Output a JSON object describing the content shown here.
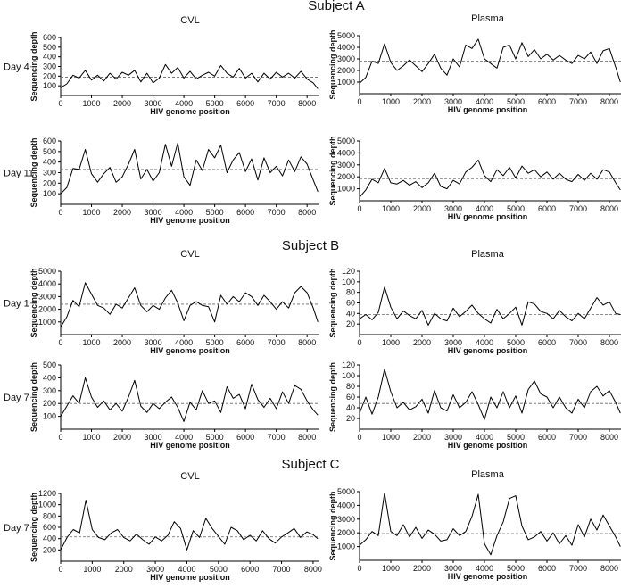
{
  "figure": {
    "subjects": [
      {
        "title": "Subject A",
        "col_titles": [
          "CVL",
          "Plasma"
        ],
        "days": [
          "Day 4",
          "Day 11"
        ]
      },
      {
        "title": "Subject B",
        "col_titles": [
          "CVL",
          "Plasma"
        ],
        "days": [
          "Day 1",
          "Day 7"
        ]
      },
      {
        "title": "Subject C",
        "col_titles": [
          "CVL",
          "Plasma"
        ],
        "days": [
          "Day 7"
        ]
      }
    ]
  },
  "chart_data": [
    {
      "id": "A-CVL-Day4",
      "type": "line",
      "xlabel": "HIV genome position",
      "ylabel": "Sequencing depth",
      "xlim": [
        0,
        8400
      ],
      "ylim": [
        0,
        600
      ],
      "xticks": [
        0,
        1000,
        2000,
        3000,
        4000,
        5000,
        6000,
        7000,
        8000
      ],
      "yticks": [
        100,
        200,
        300,
        400,
        500,
        600
      ],
      "mean": 190,
      "color": "#000000",
      "x": [
        0,
        200,
        400,
        600,
        800,
        1000,
        1200,
        1400,
        1600,
        1800,
        2000,
        2200,
        2400,
        2600,
        2800,
        3000,
        3200,
        3400,
        3600,
        3800,
        4000,
        4200,
        4400,
        4600,
        4800,
        5000,
        5200,
        5400,
        5600,
        5800,
        6000,
        6200,
        6400,
        6600,
        6800,
        7000,
        7200,
        7400,
        7600,
        7800,
        8000,
        8200,
        8350
      ],
      "y": [
        80,
        120,
        210,
        180,
        260,
        160,
        210,
        150,
        230,
        170,
        240,
        210,
        260,
        140,
        230,
        130,
        180,
        320,
        230,
        290,
        180,
        250,
        170,
        210,
        240,
        200,
        310,
        230,
        190,
        280,
        180,
        230,
        140,
        230,
        170,
        240,
        190,
        230,
        180,
        250,
        170,
        130,
        70
      ]
    },
    {
      "id": "A-Plasma-Day4",
      "type": "line",
      "xlabel": "HIV genome position",
      "ylabel": "Sequencing depth",
      "xlim": [
        0,
        8400
      ],
      "ylim": [
        0,
        5000
      ],
      "xticks": [
        0,
        1000,
        2000,
        3000,
        4000,
        5000,
        6000,
        7000,
        8000
      ],
      "yticks": [
        1000,
        2000,
        3000,
        4000,
        5000
      ],
      "mean": 2800,
      "color": "#000000",
      "x": [
        0,
        200,
        400,
        600,
        800,
        1000,
        1200,
        1400,
        1600,
        1800,
        2000,
        2200,
        2400,
        2600,
        2800,
        3000,
        3200,
        3400,
        3600,
        3800,
        4000,
        4200,
        4400,
        4600,
        4800,
        5000,
        5200,
        5400,
        5600,
        5800,
        6000,
        6200,
        6400,
        6600,
        6800,
        7000,
        7200,
        7400,
        7600,
        7800,
        8000,
        8200,
        8350
      ],
      "y": [
        900,
        1400,
        2800,
        2600,
        4300,
        2700,
        2000,
        2400,
        2900,
        2400,
        1900,
        2600,
        3400,
        2200,
        1600,
        3000,
        2300,
        4200,
        3900,
        4700,
        3000,
        2600,
        2200,
        4000,
        4200,
        3000,
        4400,
        3200,
        3800,
        3000,
        3400,
        2900,
        3300,
        2900,
        2600,
        3300,
        3000,
        3600,
        2600,
        3700,
        3900,
        2300,
        1000
      ]
    },
    {
      "id": "A-CVL-Day11",
      "type": "line",
      "xlabel": "HIV genome position",
      "ylabel": "Sequencing depth",
      "xlim": [
        0,
        8400
      ],
      "ylim": [
        0,
        600
      ],
      "xticks": [
        0,
        1000,
        2000,
        3000,
        4000,
        5000,
        6000,
        7000,
        8000
      ],
      "yticks": [
        100,
        200,
        300,
        400,
        500,
        600
      ],
      "mean": 330,
      "color": "#000000",
      "x": [
        0,
        200,
        400,
        600,
        800,
        1000,
        1200,
        1400,
        1600,
        1800,
        2000,
        2200,
        2400,
        2600,
        2800,
        3000,
        3200,
        3400,
        3600,
        3800,
        4000,
        4200,
        4400,
        4600,
        4800,
        5000,
        5200,
        5400,
        5600,
        5800,
        6000,
        6200,
        6400,
        6600,
        6800,
        7000,
        7200,
        7400,
        7600,
        7800,
        8000,
        8200,
        8350
      ],
      "y": [
        100,
        160,
        340,
        330,
        520,
        290,
        210,
        290,
        350,
        210,
        260,
        380,
        520,
        240,
        330,
        220,
        300,
        570,
        360,
        580,
        260,
        180,
        420,
        320,
        520,
        440,
        560,
        300,
        420,
        490,
        310,
        430,
        230,
        440,
        300,
        360,
        270,
        420,
        310,
        450,
        380,
        230,
        120
      ]
    },
    {
      "id": "A-Plasma-Day11",
      "type": "line",
      "xlabel": "HIV genome position",
      "ylabel": "Sequencing depth",
      "xlim": [
        0,
        8400
      ],
      "ylim": [
        0,
        5000
      ],
      "xticks": [
        0,
        1000,
        2000,
        3000,
        4000,
        5000,
        6000,
        7000,
        8000
      ],
      "yticks": [
        1000,
        2000,
        3000,
        4000,
        5000
      ],
      "mean": 1850,
      "color": "#000000",
      "x": [
        0,
        200,
        400,
        600,
        800,
        1000,
        1200,
        1400,
        1600,
        1800,
        2000,
        2200,
        2400,
        2600,
        2800,
        3000,
        3200,
        3400,
        3600,
        3800,
        4000,
        4200,
        4400,
        4600,
        4800,
        5000,
        5200,
        5400,
        5600,
        5800,
        6000,
        6200,
        6400,
        6600,
        6800,
        7000,
        7200,
        7400,
        7600,
        7800,
        8000,
        8200,
        8350
      ],
      "y": [
        300,
        900,
        1800,
        1500,
        2700,
        1500,
        1400,
        1700,
        1300,
        1600,
        1100,
        1500,
        2300,
        1200,
        1000,
        1700,
        1400,
        2400,
        2800,
        3400,
        2100,
        1600,
        2600,
        2100,
        2800,
        1900,
        2900,
        2300,
        2600,
        2000,
        2400,
        1800,
        2300,
        1800,
        1600,
        2200,
        1700,
        2300,
        1800,
        2600,
        2400,
        1500,
        900
      ]
    },
    {
      "id": "B-CVL-Day1",
      "type": "line",
      "xlabel": "HIV genome position",
      "ylabel": "Sequencing depth",
      "xlim": [
        0,
        8400
      ],
      "ylim": [
        0,
        5000
      ],
      "xticks": [
        0,
        1000,
        2000,
        3000,
        4000,
        5000,
        6000,
        7000,
        8000
      ],
      "yticks": [
        1000,
        2000,
        3000,
        4000,
        5000
      ],
      "mean": 2400,
      "color": "#000000",
      "x": [
        0,
        200,
        400,
        600,
        800,
        1000,
        1200,
        1400,
        1600,
        1800,
        2000,
        2200,
        2400,
        2600,
        2800,
        3000,
        3200,
        3400,
        3600,
        3800,
        4000,
        4200,
        4400,
        4600,
        4800,
        5000,
        5200,
        5400,
        5600,
        5800,
        6000,
        6200,
        6400,
        6600,
        6800,
        7000,
        7200,
        7400,
        7600,
        7800,
        8000,
        8200,
        8350
      ],
      "y": [
        600,
        1400,
        2700,
        2200,
        4100,
        3200,
        2300,
        2100,
        1600,
        2400,
        2100,
        2900,
        3700,
        2300,
        1800,
        2300,
        2000,
        2900,
        3500,
        2500,
        1100,
        2300,
        2600,
        2300,
        2200,
        1000,
        3100,
        2400,
        3000,
        2600,
        3300,
        3000,
        2300,
        3100,
        2600,
        2000,
        2600,
        2100,
        3300,
        3800,
        3300,
        2100,
        1000
      ]
    },
    {
      "id": "B-Plasma-Day1",
      "type": "line",
      "xlabel": "HIV genome position",
      "ylabel": "Sequencing depth",
      "xlim": [
        0,
        8400
      ],
      "ylim": [
        0,
        120
      ],
      "xticks": [
        0,
        1000,
        2000,
        3000,
        4000,
        5000,
        6000,
        7000,
        8000
      ],
      "yticks": [
        20,
        40,
        60,
        80,
        100,
        120
      ],
      "mean": 38,
      "color": "#000000",
      "x": [
        0,
        200,
        400,
        600,
        800,
        1000,
        1200,
        1400,
        1600,
        1800,
        2000,
        2200,
        2400,
        2600,
        2800,
        3000,
        3200,
        3400,
        3600,
        3800,
        4000,
        4200,
        4400,
        4600,
        4800,
        5000,
        5200,
        5400,
        5600,
        5800,
        6000,
        6200,
        6400,
        6600,
        6800,
        7000,
        7200,
        7400,
        7600,
        7800,
        8000,
        8200,
        8350
      ],
      "y": [
        30,
        38,
        28,
        42,
        90,
        52,
        30,
        45,
        36,
        30,
        46,
        18,
        40,
        30,
        26,
        50,
        34,
        44,
        56,
        40,
        30,
        22,
        48,
        30,
        40,
        52,
        18,
        62,
        58,
        44,
        40,
        30,
        46,
        34,
        26,
        40,
        30,
        50,
        70,
        56,
        62,
        40,
        38
      ]
    },
    {
      "id": "B-CVL-Day7",
      "type": "line",
      "xlabel": "HIV genome position",
      "ylabel": "Sequencing depth",
      "xlim": [
        0,
        8400
      ],
      "ylim": [
        0,
        500
      ],
      "xticks": [
        0,
        1000,
        2000,
        3000,
        4000,
        5000,
        6000,
        7000,
        8000
      ],
      "yticks": [
        100,
        200,
        300,
        400,
        500
      ],
      "mean": 200,
      "color": "#000000",
      "x": [
        0,
        200,
        400,
        600,
        800,
        1000,
        1200,
        1400,
        1600,
        1800,
        2000,
        2200,
        2400,
        2600,
        2800,
        3000,
        3200,
        3400,
        3600,
        3800,
        4000,
        4200,
        4400,
        4600,
        4800,
        5000,
        5200,
        5400,
        5600,
        5800,
        6000,
        6200,
        6400,
        6600,
        6800,
        7000,
        7200,
        7400,
        7600,
        7800,
        8000,
        8200,
        8350
      ],
      "y": [
        100,
        180,
        260,
        200,
        400,
        250,
        170,
        220,
        150,
        200,
        140,
        250,
        380,
        180,
        130,
        200,
        160,
        210,
        250,
        170,
        60,
        210,
        150,
        300,
        200,
        220,
        130,
        330,
        240,
        270,
        160,
        350,
        230,
        170,
        240,
        160,
        290,
        200,
        340,
        310,
        220,
        150,
        110
      ]
    },
    {
      "id": "B-Plasma-Day7",
      "type": "line",
      "xlabel": "HIV genome position",
      "ylabel": "Sequencing depth",
      "xlim": [
        0,
        8400
      ],
      "ylim": [
        0,
        120
      ],
      "xticks": [
        0,
        1000,
        2000,
        3000,
        4000,
        5000,
        6000,
        7000,
        8000
      ],
      "yticks": [
        20,
        40,
        60,
        80,
        100,
        120
      ],
      "mean": 48,
      "color": "#000000",
      "x": [
        0,
        200,
        400,
        600,
        800,
        1000,
        1200,
        1400,
        1600,
        1800,
        2000,
        2200,
        2400,
        2600,
        2800,
        3000,
        3200,
        3400,
        3600,
        3800,
        4000,
        4200,
        4400,
        4600,
        4800,
        5000,
        5200,
        5400,
        5600,
        5800,
        6000,
        6200,
        6400,
        6600,
        6800,
        7000,
        7200,
        7400,
        7600,
        7800,
        8000,
        8200,
        8350
      ],
      "y": [
        30,
        60,
        28,
        60,
        112,
        70,
        40,
        50,
        36,
        42,
        56,
        30,
        72,
        40,
        34,
        64,
        40,
        50,
        70,
        46,
        18,
        60,
        40,
        70,
        40,
        62,
        30,
        74,
        90,
        66,
        60,
        40,
        60,
        40,
        30,
        56,
        40,
        70,
        80,
        62,
        72,
        50,
        30
      ]
    },
    {
      "id": "C-CVL-Day7",
      "type": "line",
      "xlabel": "HIV genome position",
      "ylabel": "Sequencing depth",
      "xlim": [
        0,
        8200
      ],
      "ylim": [
        0,
        1200
      ],
      "xticks": [
        0,
        1000,
        2000,
        3000,
        4000,
        5000,
        6000,
        7000,
        8000
      ],
      "yticks": [
        200,
        400,
        600,
        800,
        1000,
        1200
      ],
      "mean": 430,
      "color": "#000000",
      "x": [
        0,
        200,
        400,
        600,
        800,
        1000,
        1200,
        1400,
        1600,
        1800,
        2000,
        2200,
        2400,
        2600,
        2800,
        3000,
        3200,
        3400,
        3600,
        3800,
        4000,
        4200,
        4400,
        4600,
        4800,
        5000,
        5200,
        5400,
        5600,
        5800,
        6000,
        6200,
        6400,
        6600,
        6800,
        7000,
        7200,
        7400,
        7600,
        7800,
        8000,
        8150
      ],
      "y": [
        200,
        420,
        560,
        500,
        1080,
        560,
        420,
        380,
        500,
        560,
        420,
        360,
        480,
        380,
        300,
        430,
        360,
        460,
        700,
        580,
        200,
        540,
        420,
        760,
        580,
        440,
        300,
        600,
        540,
        380,
        460,
        360,
        540,
        400,
        320,
        430,
        500,
        580,
        420,
        520,
        470,
        400
      ]
    },
    {
      "id": "C-Plasma-Day7",
      "type": "line",
      "xlabel": "HIV genome position",
      "ylabel": "Sequencing depth",
      "xlim": [
        0,
        8400
      ],
      "ylim": [
        0,
        5000
      ],
      "xticks": [
        0,
        1000,
        2000,
        3000,
        4000,
        5000,
        6000,
        7000,
        8000
      ],
      "yticks": [
        1000,
        2000,
        3000,
        4000,
        5000
      ],
      "mean": 1950,
      "color": "#000000",
      "x": [
        0,
        200,
        400,
        600,
        800,
        1000,
        1200,
        1400,
        1600,
        1800,
        2000,
        2200,
        2400,
        2600,
        2800,
        3000,
        3200,
        3400,
        3600,
        3800,
        4000,
        4200,
        4400,
        4600,
        4800,
        5000,
        5200,
        5400,
        5600,
        5800,
        6000,
        6200,
        6400,
        6600,
        6800,
        7000,
        7200,
        7400,
        7600,
        7800,
        8000,
        8200,
        8350
      ],
      "y": [
        1100,
        1500,
        2100,
        1800,
        4900,
        2100,
        1800,
        2600,
        1700,
        2400,
        1600,
        2200,
        1900,
        1400,
        1500,
        2300,
        1800,
        2100,
        3200,
        4800,
        1200,
        400,
        1800,
        2800,
        4500,
        4700,
        2500,
        1500,
        1700,
        2100,
        1400,
        2000,
        1200,
        1800,
        1100,
        2600,
        1700,
        3000,
        2200,
        3300,
        2500,
        1700,
        1000
      ]
    }
  ],
  "panels": [
    {
      "chart": 0,
      "title": "CVL",
      "day": "Day 4"
    },
    {
      "chart": 1,
      "title": "Plasma"
    },
    {
      "chart": 2,
      "day": "Day 11"
    },
    {
      "chart": 3
    },
    {
      "chart": 4,
      "title": "CVL",
      "day": "Day 1"
    },
    {
      "chart": 5,
      "title": "Plasma"
    },
    {
      "chart": 6,
      "day": "Day 7"
    },
    {
      "chart": 7
    },
    {
      "chart": 8,
      "title": "CVL",
      "day": "Day 7"
    },
    {
      "chart": 9,
      "title": "Plasma"
    }
  ]
}
